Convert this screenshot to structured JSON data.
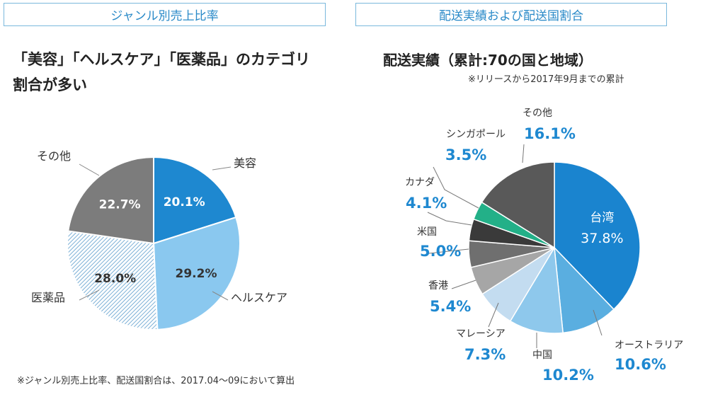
{
  "headers": {
    "left": "ジャンル別売上比率",
    "right": "配送実績および配送国割合"
  },
  "left": {
    "headline_line1": "「美容」「ヘルスケア」「医薬品」のカテゴリ",
    "headline_line2": "割合が多い",
    "footnote": "※ジャンル別売上比率、配送国割合は、2017.04～09において算出"
  },
  "right": {
    "title": "配送実績（累計:70の国と地域）",
    "note": "※リリースから2017年9月までの累計"
  },
  "chart_data": [
    {
      "type": "pie",
      "title": "ジャンル別売上比率",
      "unit": "%",
      "slices": [
        {
          "label": "美容",
          "value": 20.1,
          "value_label": "20.1%",
          "color": "#1e88d0"
        },
        {
          "label": "ヘルスケア",
          "value": 29.2,
          "value_label": "29.2%",
          "color": "#8ac8ef"
        },
        {
          "label": "医薬品",
          "value": 28.0,
          "value_label": "28.0%",
          "color": "#bcd6ea",
          "pattern": "hatched"
        },
        {
          "label": "その他",
          "value": 22.7,
          "value_label": "22.7%",
          "color": "#7c7c7c"
        }
      ]
    },
    {
      "type": "pie",
      "title": "配送実績（累計:70の国と地域）",
      "unit": "%",
      "slices": [
        {
          "label": "台湾",
          "value": 37.8,
          "value_label": "37.8%",
          "color": "#1a84cf"
        },
        {
          "label": "オーストラリア",
          "value": 10.6,
          "value_label": "10.6%",
          "color": "#5aaee0"
        },
        {
          "label": "中国",
          "value": 10.2,
          "value_label": "10.2%",
          "color": "#8ec8ec"
        },
        {
          "label": "マレーシア",
          "value": 7.3,
          "value_label": "7.3%",
          "color": "#c3dcf0"
        },
        {
          "label": "香港",
          "value": 5.4,
          "value_label": "5.4%",
          "color": "#a6a6a6"
        },
        {
          "label": "米国",
          "value": 5.0,
          "value_label": "5.0%",
          "color": "#6f6f6f"
        },
        {
          "label": "カナダ",
          "value": 4.1,
          "value_label": "4.1%",
          "color": "#3a3a3a"
        },
        {
          "label": "シンガポール",
          "value": 3.5,
          "value_label": "3.5%",
          "color": "#23b088"
        },
        {
          "label": "その他",
          "value": 16.1,
          "value_label": "16.1%",
          "color": "#595959"
        }
      ]
    }
  ]
}
